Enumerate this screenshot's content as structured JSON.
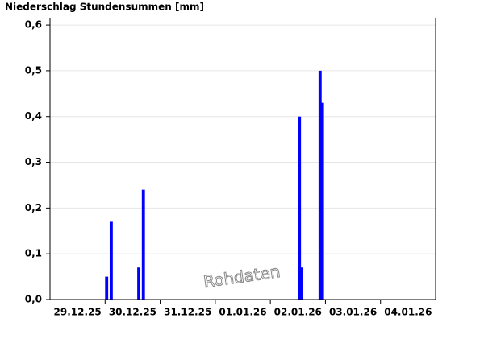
{
  "chart_data": {
    "type": "bar",
    "title": "Niederschlag Stundensummen [mm]",
    "watermark": "Rohdaten",
    "x": [
      24,
      26,
      38,
      40,
      108,
      109,
      117,
      118
    ],
    "values": [
      0.05,
      0.17,
      0.07,
      0.24,
      0.4,
      0.07,
      0.5,
      0.43
    ],
    "color": "#0000ff",
    "xlim": [
      0,
      168
    ],
    "xticks": [
      {
        "value": 12,
        "label": "29.12.25"
      },
      {
        "value": 36,
        "label": "30.12.25"
      },
      {
        "value": 60,
        "label": "31.12.25"
      },
      {
        "value": 84,
        "label": "01.01.26"
      },
      {
        "value": 108,
        "label": "02.01.26"
      },
      {
        "value": 132,
        "label": "03.01.26"
      },
      {
        "value": 156,
        "label": "04.01.26"
      }
    ],
    "ylim": [
      0,
      0.616
    ],
    "yticks": [
      {
        "value": 0,
        "label": "0,0"
      },
      {
        "value": 0.1,
        "label": "0,1"
      },
      {
        "value": 0.2,
        "label": "0,2"
      },
      {
        "value": 0.3,
        "label": "0,3"
      },
      {
        "value": 0.4,
        "label": "0,4"
      },
      {
        "value": 0.5,
        "label": "0,5"
      },
      {
        "value": 0.6,
        "label": "0,6"
      }
    ],
    "grid": true
  }
}
